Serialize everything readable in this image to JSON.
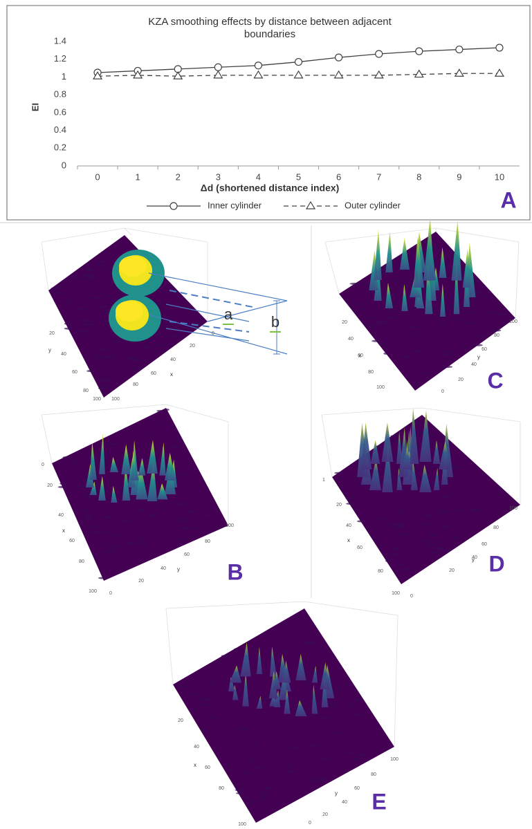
{
  "chart_data": {
    "type": "line",
    "title": "KZA smoothing effects by distance between adjacent",
    "subtitle": "boundaries",
    "panel": "A",
    "y_label": "EI",
    "x_label": "Δd (shortened distance index)",
    "categories": [
      "0",
      "1",
      "2",
      "3",
      "4",
      "5",
      "6",
      "7",
      "8",
      "9",
      "10"
    ],
    "series": [
      {
        "name": "Inner cylinder",
        "color": "#404040",
        "marker": "circle",
        "dash": false,
        "values": [
          1.05,
          1.07,
          1.09,
          1.11,
          1.13,
          1.17,
          1.22,
          1.26,
          1.29,
          1.31,
          1.33
        ]
      },
      {
        "name": "Outer cylinder",
        "color": "#404040",
        "marker": "triangle",
        "dash": true,
        "values": [
          1.01,
          1.02,
          1.01,
          1.02,
          1.02,
          1.02,
          1.02,
          1.02,
          1.03,
          1.04,
          1.04
        ]
      }
    ],
    "ylim": [
      0,
      1.4
    ],
    "yticks": [
      0,
      0.2,
      0.4,
      0.6,
      0.8,
      1,
      1.2,
      1.4
    ],
    "grid": false
  },
  "panels": [
    {
      "label": "",
      "annotations": [
        "a",
        "b"
      ],
      "ticks": [
        "20",
        "40",
        "60",
        "80",
        "100",
        "0",
        "20",
        "40",
        "60",
        "80",
        "100"
      ],
      "axes": [
        "y",
        "x"
      ]
    },
    {
      "label": "C",
      "annotations": [],
      "ticks": [
        "20",
        "40",
        "60",
        "80",
        "100",
        "0",
        "20",
        "40",
        "60",
        "80",
        "100"
      ],
      "axes": [
        "x",
        "y"
      ]
    },
    {
      "label": "B",
      "annotations": [],
      "ticks": [
        "0",
        "20",
        "40",
        "60",
        "80",
        "100",
        "0",
        "20",
        "40",
        "60",
        "80",
        "100"
      ],
      "axes": [
        "x",
        "y"
      ]
    },
    {
      "label": "D",
      "annotations": [],
      "ticks": [
        "1",
        "20",
        "40",
        "60",
        "80",
        "100",
        "0",
        "20",
        "40",
        "60",
        "80",
        "100"
      ],
      "axes": [
        "x",
        "y"
      ]
    },
    {
      "label": "E",
      "annotations": [],
      "ticks": [
        "20",
        "40",
        "60",
        "80",
        "100",
        "0",
        "20",
        "40",
        "60",
        "80",
        "100"
      ],
      "axes": [
        "x",
        "y"
      ]
    }
  ]
}
